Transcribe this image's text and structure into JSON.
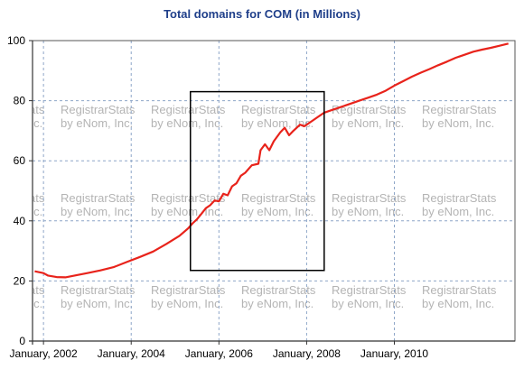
{
  "chart_data": {
    "type": "line",
    "title": "Total domains for COM (in Millions)",
    "xlabel": "",
    "ylabel": "",
    "xlim": [
      2001.75,
      2012.75
    ],
    "ylim": [
      0,
      100
    ],
    "x_ticks": [
      {
        "value": 2002,
        "label": "January, 2002"
      },
      {
        "value": 2004,
        "label": "January, 2004"
      },
      {
        "value": 2006,
        "label": "January, 2006"
      },
      {
        "value": 2008,
        "label": "January, 2008"
      },
      {
        "value": 2010,
        "label": "January, 2010"
      }
    ],
    "y_ticks": [
      0,
      20,
      40,
      60,
      80,
      100
    ],
    "grid": true,
    "legend": "none",
    "line_color": "#e8231b",
    "watermark": {
      "line1": "RegistrarStats",
      "line2": "by eNom, Inc."
    },
    "annotation": {
      "type": "rectangle",
      "x0": 2005.35,
      "x1": 2008.4,
      "y0": 23.5,
      "y1": 83
    },
    "series": [
      {
        "x": [
          2001.8,
          2002.0,
          2002.1,
          2002.3,
          2002.5,
          2002.75,
          2003.0,
          2003.3,
          2003.6,
          2003.9,
          2004.2,
          2004.5,
          2004.8,
          2005.1,
          2005.3,
          2005.4,
          2005.5,
          2005.6,
          2005.7,
          2005.8,
          2005.9,
          2006.0,
          2006.1,
          2006.2,
          2006.3,
          2006.4,
          2006.5,
          2006.6,
          2006.75,
          2006.9,
          2006.95,
          2007.05,
          2007.15,
          2007.25,
          2007.4,
          2007.5,
          2007.6,
          2007.7,
          2007.85,
          2007.95,
          2008.1,
          2008.25,
          2008.4,
          2008.6,
          2008.8,
          2009.0,
          2009.2,
          2009.4,
          2009.6,
          2009.8,
          2010.0,
          2010.2,
          2010.4,
          2010.6,
          2010.8,
          2011.0,
          2011.2,
          2011.4,
          2011.6,
          2011.8,
          2012.0,
          2012.2,
          2012.4,
          2012.6
        ],
        "y": [
          23.2,
          22.6,
          21.8,
          21.3,
          21.2,
          21.9,
          22.6,
          23.5,
          24.6,
          26.3,
          28.0,
          29.8,
          32.3,
          35.0,
          37.5,
          39.2,
          40.5,
          42.3,
          44.2,
          45.2,
          46.8,
          46.5,
          49.0,
          48.5,
          51.5,
          52.5,
          55.0,
          56.0,
          58.5,
          59.0,
          63.5,
          65.5,
          63.5,
          66.5,
          69.5,
          71.0,
          68.5,
          70.0,
          72.0,
          71.5,
          73.0,
          74.5,
          76.0,
          77.0,
          78.0,
          79.0,
          80.0,
          81.0,
          82.0,
          83.3,
          85.0,
          86.5,
          88.0,
          89.3,
          90.5,
          91.8,
          93.0,
          94.3,
          95.3,
          96.3,
          97.0,
          97.6,
          98.3,
          99.0
        ]
      }
    ]
  }
}
